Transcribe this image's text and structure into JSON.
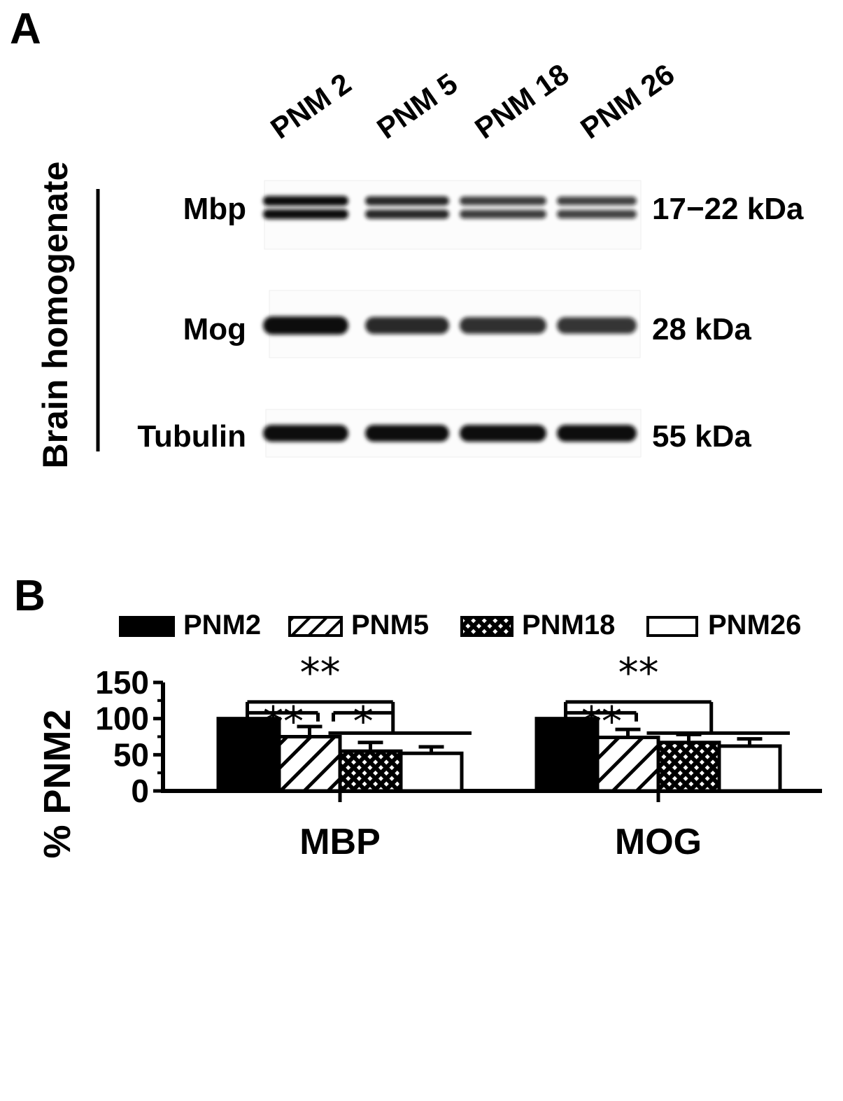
{
  "panel_a": {
    "label": "A",
    "side_label": "Brain homogenate",
    "lanes": [
      "PNM 2",
      "PNM 5",
      "PNM 18",
      "PNM 26"
    ],
    "blots": [
      {
        "protein": "Mbp",
        "size": "17−22 kDa",
        "relative_intensity": [
          1.0,
          0.75,
          0.55,
          0.52
        ],
        "double_band": true
      },
      {
        "protein": "Mog",
        "size": "28 kDa",
        "relative_intensity": [
          1.0,
          0.74,
          0.67,
          0.62
        ],
        "double_band": false
      },
      {
        "protein": "Tubulin",
        "size": "55 kDa",
        "relative_intensity": [
          1.0,
          1.0,
          1.0,
          1.0
        ],
        "double_band": false
      }
    ]
  },
  "panel_b": {
    "label": "B"
  },
  "chart_data": {
    "type": "bar",
    "categories": [
      "MBP",
      "MOG"
    ],
    "series": [
      {
        "name": "PNM2",
        "values": [
          100,
          100
        ],
        "errors": [
          0,
          0
        ],
        "pattern": "solid-black"
      },
      {
        "name": "PNM5",
        "values": [
          75,
          74
        ],
        "errors": [
          14,
          11
        ],
        "pattern": "diagonal-hatch"
      },
      {
        "name": "PNM18",
        "values": [
          55,
          67
        ],
        "errors": [
          12,
          11
        ],
        "pattern": "crosshatch"
      },
      {
        "name": "PNM26",
        "values": [
          52,
          62
        ],
        "errors": [
          9,
          10
        ],
        "pattern": "white"
      }
    ],
    "ylabel": "% PNM2",
    "xlabel": "",
    "ylim": [
      0,
      150
    ],
    "yticks": [
      0,
      50,
      100,
      150
    ],
    "legend_position": "top",
    "grid": false,
    "significance": [
      {
        "group": "MBP",
        "text": "**",
        "compare": "PNM2 vs PNM18/PNM26"
      },
      {
        "group": "MBP",
        "text": "**",
        "compare": "PNM2 vs PNM5"
      },
      {
        "group": "MBP",
        "text": "*",
        "compare": "PNM5 vs PNM18/PNM26"
      },
      {
        "group": "MOG",
        "text": "**",
        "compare": "PNM2 vs PNM18/PNM26"
      },
      {
        "group": "MOG",
        "text": "**",
        "compare": "PNM2 vs PNM5"
      }
    ]
  }
}
